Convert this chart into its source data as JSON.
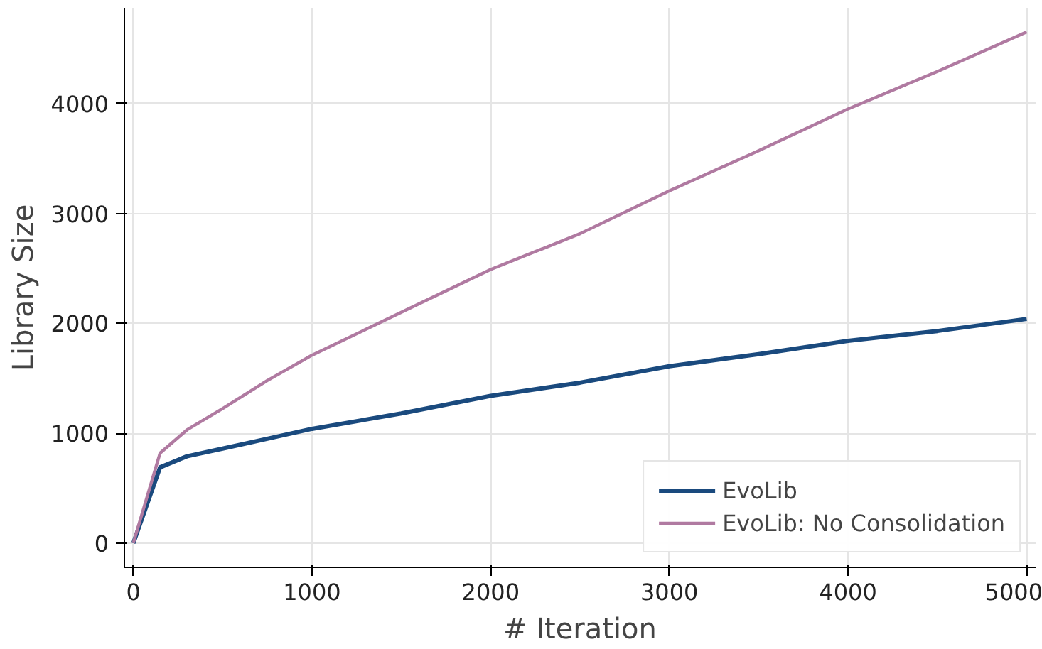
{
  "chart_data": {
    "type": "line",
    "xlabel": "# Iteration",
    "ylabel": "Library Size",
    "x": [
      0,
      150,
      300,
      500,
      750,
      1000,
      1500,
      2000,
      2500,
      3000,
      3500,
      4000,
      4500,
      5000
    ],
    "series": [
      {
        "name": "EvoLib",
        "color": "#1a4a7e",
        "values": [
          0,
          690,
          790,
          860,
          950,
          1040,
          1180,
          1340,
          1460,
          1610,
          1720,
          1840,
          1930,
          2040
        ]
      },
      {
        "name": "EvoLib: No Consolidation",
        "color": "#b07aa1",
        "values": [
          0,
          820,
          1030,
          1225,
          1480,
          1710,
          2100,
          2490,
          2815,
          3205,
          3570,
          3950,
          4290,
          4650
        ]
      }
    ],
    "xlim": [
      -50,
      5050
    ],
    "ylim": [
      -220,
      4870
    ],
    "xticks": [
      0,
      1000,
      2000,
      3000,
      4000,
      5000
    ],
    "yticks": [
      0,
      1000,
      2000,
      3000,
      4000
    ],
    "grid": true,
    "legend": "bottom right",
    "marker": "none",
    "line_style": "solid"
  }
}
